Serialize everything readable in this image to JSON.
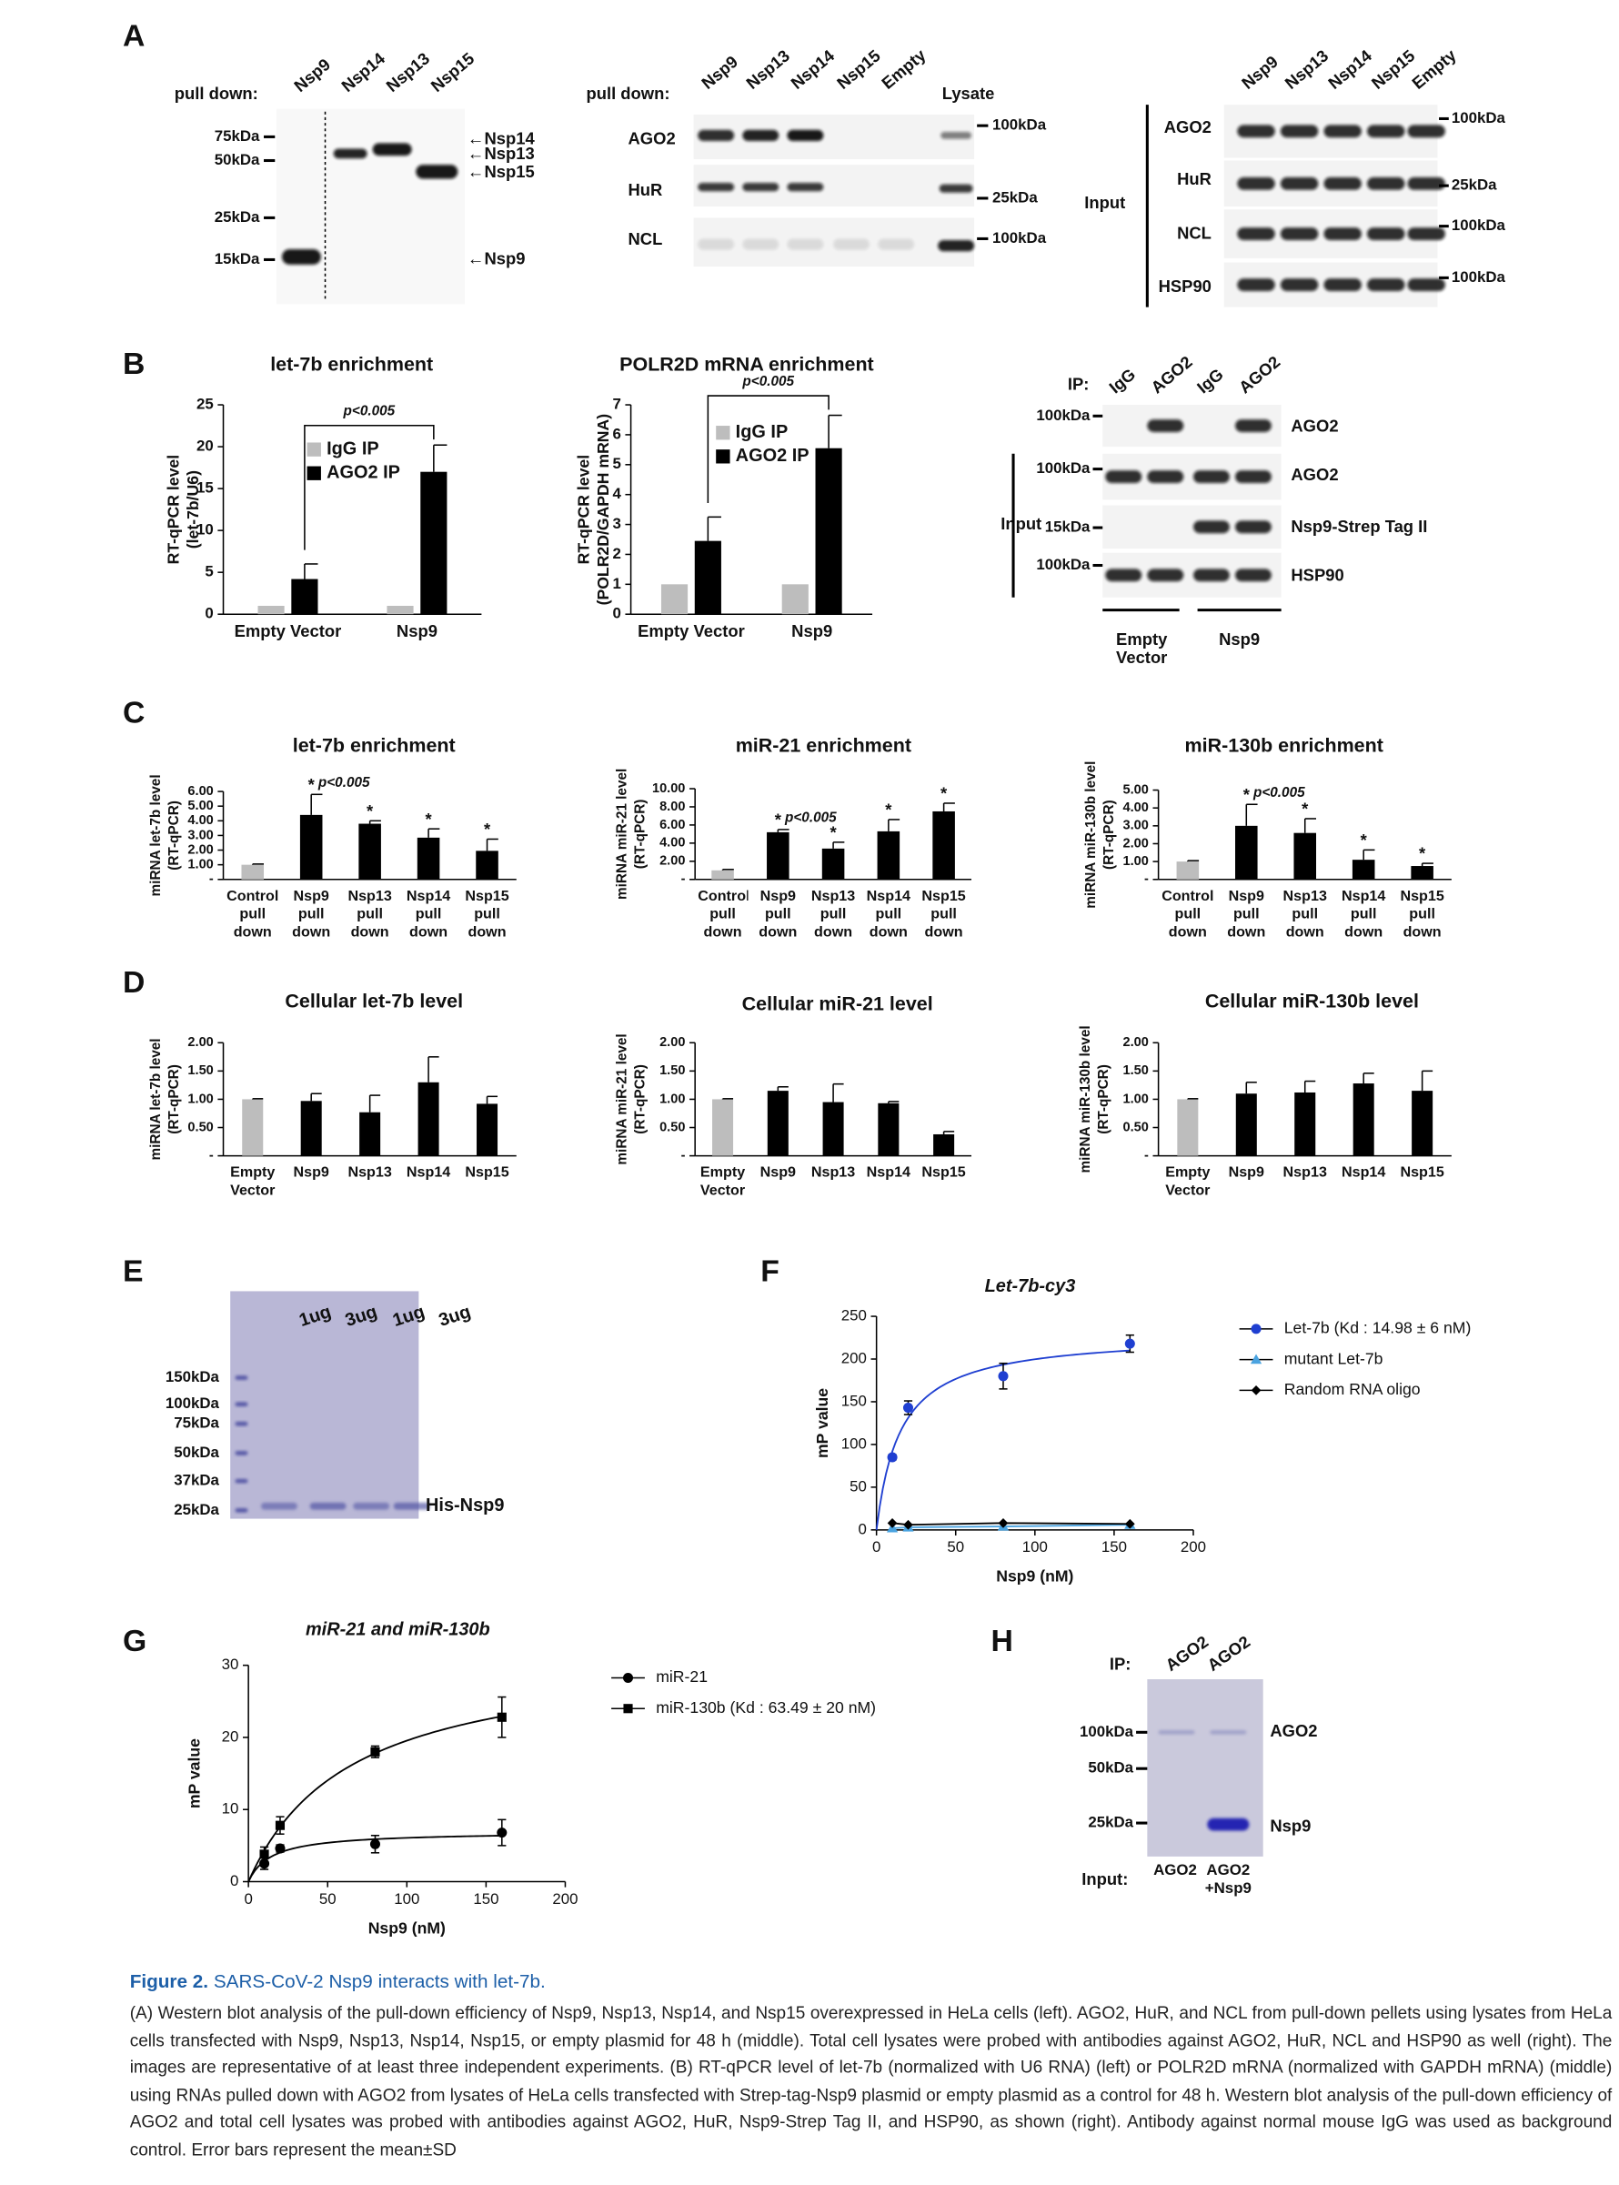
{
  "panel_labels": [
    "A",
    "B",
    "C",
    "D",
    "E",
    "F",
    "G",
    "H"
  ],
  "blots": {
    "A_left": {
      "pull_down": "pull down:",
      "lanes": [
        "Nsp9",
        "Nsp14",
        "Nsp13",
        "Nsp15"
      ],
      "markers": [
        "75kDa",
        "50kDa",
        "25kDa",
        "15kDa"
      ],
      "bands": [
        "←Nsp14",
        "←Nsp13",
        "←Nsp15",
        "←Nsp9"
      ]
    },
    "A_middle": {
      "pull_down": "pull down:",
      "lanes": [
        "Nsp9",
        "Nsp13",
        "Nsp14",
        "Nsp15",
        "Empty"
      ],
      "lysate": "Lysate",
      "rows": [
        "AGO2",
        "HuR",
        "NCL"
      ],
      "markers": [
        "100kDa",
        "25kDa",
        "100kDa"
      ]
    },
    "A_right": {
      "lanes": [
        "Nsp9",
        "Nsp13",
        "Nsp14",
        "Nsp15",
        "Empty"
      ],
      "rows": [
        "AGO2",
        "HuR",
        "NCL",
        "HSP90"
      ],
      "markers": [
        "100kDa",
        "25kDa",
        "100kDa",
        "100kDa"
      ],
      "group": "Input"
    },
    "B_right": {
      "ip": "IP:",
      "lanes": [
        "IgG",
        "AGO2",
        "IgG",
        "AGO2"
      ],
      "markers": [
        "100kDa",
        "100kDa",
        "15kDa",
        "100kDa"
      ],
      "rows": [
        "AGO2",
        "AGO2",
        "Nsp9-Strep Tag II",
        "HSP90"
      ],
      "group": "Input",
      "conditions": [
        "Empty Vector",
        "Nsp9"
      ]
    },
    "E": {
      "lanes": [
        "1ug",
        "3ug",
        "1ug",
        "3ug"
      ],
      "markers": [
        "150kDa",
        "100kDa",
        "75kDa",
        "50kDa",
        "37kDa",
        "25kDa"
      ],
      "band": "His-Nsp9"
    },
    "H": {
      "ip": "IP:",
      "lanes": [
        "AGO2",
        "AGO2"
      ],
      "markers": [
        "100kDa",
        "50kDa",
        "25kDa"
      ],
      "rows": [
        "AGO2",
        "Nsp9"
      ],
      "input": "Input:",
      "inputs": [
        "AGO2",
        "AGO2 +Nsp9"
      ]
    }
  },
  "chart_data": [
    {
      "type": "bar",
      "title": "let-7b enrichment",
      "ylabel": [
        "RT-qPCR level",
        "(let-7b/U6)"
      ],
      "categories": [
        "Empty Vector",
        "Nsp9"
      ],
      "series": [
        {
          "name": "IgG IP",
          "color": "#bdbdbd",
          "values": [
            1,
            1
          ]
        },
        {
          "name": "AGO2 IP",
          "color": "#000000",
          "values": [
            4.2,
            17
          ],
          "errors": [
            1.8,
            3.2
          ]
        }
      ],
      "ylim": [
        0,
        25
      ],
      "yticks": [
        0,
        5,
        10,
        15,
        20,
        25
      ],
      "p_label": "p<0.005",
      "legend": true
    },
    {
      "type": "bar",
      "title": "POLR2D mRNA enrichment",
      "ylabel": [
        "RT-qPCR level",
        "(POLR2D/GAPDH mRNA)"
      ],
      "categories": [
        "Empty Vector",
        "Nsp9"
      ],
      "series": [
        {
          "name": "IgG IP",
          "color": "#bdbdbd",
          "values": [
            1,
            1
          ]
        },
        {
          "name": "AGO2 IP",
          "color": "#000000",
          "values": [
            2.45,
            5.55
          ],
          "errors": [
            0.8,
            1.1
          ]
        }
      ],
      "ylim": [
        0,
        7
      ],
      "yticks": [
        0,
        1,
        2,
        3,
        4,
        5,
        6,
        7
      ],
      "p_label": "p<0.005",
      "legend": true
    },
    {
      "type": "bar",
      "title": "let-7b enrichment",
      "ylabel": [
        "miRNA let-7b level",
        "(RT-qPCR)"
      ],
      "categories": [
        "Control pull down",
        "Nsp9 pull down",
        "Nsp13 pull down",
        "Nsp14 pull down",
        "Nsp15 pull down"
      ],
      "series": [
        {
          "colors": [
            "#bdbdbd",
            "#000000",
            "#000000",
            "#000000",
            "#000000"
          ],
          "values": [
            1,
            4.4,
            3.8,
            2.85,
            1.95
          ],
          "errors": [
            0.05,
            1.4,
            0.2,
            0.6,
            0.8
          ]
        }
      ],
      "ylim": [
        0,
        6
      ],
      "yticks": [
        {
          "value": 0,
          "label": "-"
        },
        {
          "value": 1,
          "label": "1.00"
        },
        {
          "value": 2,
          "label": "2.00"
        },
        {
          "value": 3,
          "label": "3.00"
        },
        {
          "value": 4,
          "label": "4.00"
        },
        {
          "value": 5,
          "label": "5.00"
        },
        {
          "value": 6,
          "label": "6.00"
        }
      ],
      "significance": [
        null,
        "*",
        "*",
        "*",
        "*"
      ],
      "p_label": "p<0.005"
    },
    {
      "type": "bar",
      "title": "miR-21 enrichment",
      "ylabel": [
        "miRNA miR-21 level",
        "(RT-qPCR)"
      ],
      "categories": [
        "Control pull down",
        "Nsp9 pull down",
        "Nsp13 pull down",
        "Nsp14 pull down",
        "Nsp15 pull down"
      ],
      "series": [
        {
          "colors": [
            "#bdbdbd",
            "#000000",
            "#000000",
            "#000000",
            "#000000"
          ],
          "values": [
            1,
            5.2,
            3.4,
            5.3,
            7.5
          ],
          "errors": [
            0.1,
            0.3,
            0.7,
            1.3,
            0.9
          ]
        }
      ],
      "ylim": [
        0,
        10
      ],
      "yticks": [
        {
          "value": 0,
          "label": "-"
        },
        {
          "value": 2,
          "label": "2.00"
        },
        {
          "value": 4,
          "label": "4.00"
        },
        {
          "value": 6,
          "label": "6.00"
        },
        {
          "value": 8,
          "label": "8.00"
        },
        {
          "value": 10,
          "label": "10.00"
        }
      ],
      "significance": [
        null,
        "*",
        "*",
        "*",
        "*"
      ],
      "p_label": "p<0.005"
    },
    {
      "type": "bar",
      "title": "miR-130b enrichment",
      "ylabel": [
        "miRNA miR-130b level",
        "(RT-qPCR)"
      ],
      "categories": [
        "Control pull down",
        "Nsp9 pull down",
        "Nsp13 pull down",
        "Nsp14 pull down",
        "Nsp15 pull down"
      ],
      "series": [
        {
          "colors": [
            "#bdbdbd",
            "#000000",
            "#000000",
            "#000000",
            "#000000"
          ],
          "values": [
            1,
            3,
            2.6,
            1.1,
            0.75
          ],
          "errors": [
            0.05,
            1.2,
            0.8,
            0.55,
            0.15
          ]
        }
      ],
      "ylim": [
        0,
        5
      ],
      "yticks": [
        {
          "value": 0,
          "label": "-"
        },
        {
          "value": 1,
          "label": "1.00"
        },
        {
          "value": 2,
          "label": "2.00"
        },
        {
          "value": 3,
          "label": "3.00"
        },
        {
          "value": 4,
          "label": "4.00"
        },
        {
          "value": 5,
          "label": "5.00"
        }
      ],
      "significance": [
        null,
        "*",
        "*",
        "*",
        "*"
      ],
      "p_label": "p<0.005"
    },
    {
      "type": "bar",
      "title": "Cellular let-7b level",
      "ylabel": [
        "miRNA let-7b level",
        "(RT-qPCR)"
      ],
      "categories": [
        "Empty Vector",
        "Nsp9",
        "Nsp13",
        "Nsp14",
        "Nsp15"
      ],
      "series": [
        {
          "colors": [
            "#bdbdbd",
            "#000000",
            "#000000",
            "#000000",
            "#000000"
          ],
          "values": [
            1,
            0.97,
            0.77,
            1.3,
            0.92
          ],
          "errors": [
            0.01,
            0.13,
            0.3,
            0.45,
            0.13
          ]
        }
      ],
      "ylim": [
        0,
        2
      ],
      "yticks": [
        {
          "value": 0,
          "label": "-"
        },
        {
          "value": 0.5,
          "label": "0.50"
        },
        {
          "value": 1,
          "label": "1.00"
        },
        {
          "value": 1.5,
          "label": "1.50"
        },
        {
          "value": 2,
          "label": "2.00"
        }
      ]
    },
    {
      "type": "bar",
      "title": "Cellular miR-21 level",
      "ylabel": [
        "miRNA miR-21 level",
        "(RT-qPCR)"
      ],
      "categories": [
        "Empty Vector",
        "Nsp9",
        "Nsp13",
        "Nsp14",
        "Nsp15"
      ],
      "series": [
        {
          "colors": [
            "#bdbdbd",
            "#000000",
            "#000000",
            "#000000",
            "#000000"
          ],
          "values": [
            1,
            1.15,
            0.95,
            0.93,
            0.38
          ],
          "errors": [
            0.01,
            0.07,
            0.32,
            0.03,
            0.05
          ]
        }
      ],
      "ylim": [
        0,
        2
      ],
      "yticks": [
        {
          "value": 0,
          "label": "-"
        },
        {
          "value": 0.5,
          "label": "0.50"
        },
        {
          "value": 1,
          "label": "1.00"
        },
        {
          "value": 1.5,
          "label": "1.50"
        },
        {
          "value": 2,
          "label": "2.00"
        }
      ]
    },
    {
      "type": "bar",
      "title": "Cellular miR-130b level",
      "ylabel": [
        "miRNA miR-130b level",
        "(RT-qPCR)"
      ],
      "categories": [
        "Empty Vector",
        "Nsp9",
        "Nsp13",
        "Nsp14",
        "Nsp15"
      ],
      "series": [
        {
          "colors": [
            "#bdbdbd",
            "#000000",
            "#000000",
            "#000000",
            "#000000"
          ],
          "values": [
            1,
            1.1,
            1.12,
            1.28,
            1.15
          ],
          "errors": [
            0.01,
            0.2,
            0.2,
            0.18,
            0.35
          ]
        }
      ],
      "ylim": [
        0,
        2
      ],
      "yticks": [
        {
          "value": 0,
          "label": "-"
        },
        {
          "value": 0.5,
          "label": "0.50"
        },
        {
          "value": 1,
          "label": "1.00"
        },
        {
          "value": 1.5,
          "label": "1.50"
        },
        {
          "value": 2,
          "label": "2.00"
        }
      ]
    },
    {
      "type": "scatter",
      "title": "Let-7b-cy3",
      "xlabel": "Nsp9 (nM)",
      "ylabel": "mP value",
      "x": [
        10,
        20,
        80,
        160
      ],
      "series": [
        {
          "name": "Let-7b (Kd : 14.98 ± 6 nM)",
          "color": "#1f3fd1",
          "marker": "circle",
          "fit": true,
          "values": [
            85,
            143,
            180,
            218
          ],
          "errors": [
            3,
            8,
            15,
            10
          ]
        },
        {
          "name": "mutant Let-7b",
          "color": "#4aa3e0",
          "marker": "triangle",
          "values": [
            2,
            3,
            4,
            6
          ]
        },
        {
          "name": "Random RNA oligo",
          "color": "#000000",
          "marker": "diamond",
          "values": [
            8,
            6,
            8,
            7
          ]
        }
      ],
      "xlim": [
        0,
        200
      ],
      "xticks": [
        0,
        50,
        100,
        150,
        200
      ],
      "ylim": [
        0,
        250
      ],
      "yticks": [
        0,
        50,
        100,
        150,
        200,
        250
      ],
      "legend": "right"
    },
    {
      "type": "scatter",
      "title": "miR-21 and miR-130b",
      "xlabel": "Nsp9 (nM)",
      "ylabel": "mP value",
      "x": [
        10,
        20,
        80,
        160
      ],
      "series": [
        {
          "name": "miR-21",
          "color": "#000000",
          "marker": "circle",
          "fit": true,
          "values": [
            2.5,
            4.6,
            5.2,
            6.8
          ],
          "errors": [
            0.8,
            0.5,
            1.2,
            1.8
          ]
        },
        {
          "name": "miR-130b (Kd : 63.49 ± 20 nM)",
          "color": "#000000",
          "marker": "square",
          "fit": true,
          "values": [
            3.8,
            7.8,
            18,
            22.8
          ],
          "errors": [
            1,
            1.2,
            0.8,
            2.8
          ]
        }
      ],
      "xlim": [
        0,
        200
      ],
      "xticks": [
        0,
        50,
        100,
        150,
        200
      ],
      "ylim": [
        0,
        30
      ],
      "yticks": [
        0,
        10,
        20,
        30
      ],
      "legend": "right"
    }
  ],
  "caption": {
    "label": "Figure 2.",
    "heading": "SARS-CoV-2 Nsp9 interacts with let-7b.",
    "text": "(A) Western blot analysis of the pull-down efficiency of Nsp9, Nsp13, Nsp14, and Nsp15 overexpressed in HeLa cells (left). AGO2, HuR, and NCL from pull-down pellets using lysates from HeLa cells transfected with Nsp9, Nsp13, Nsp14, Nsp15, or empty plasmid for 48 h (middle). Total cell lysates were probed with antibodies against AGO2, HuR, NCL and HSP90 as well (right). The images are representative of at least three independent experiments. (B) RT-qPCR level of let-7b (normalized with U6 RNA) (left) or POLR2D mRNA (normalized with GAPDH mRNA) (middle) using RNAs pulled down with AGO2 from lysates of HeLa cells transfected with Strep-tag-Nsp9 plasmid or empty plasmid as a control for 48 h. Western blot analysis of the pull-down efficiency of AGO2 and total cell lysates was probed with antibodies against AGO2, HuR, Nsp9-Strep Tag II, and HSP90, as shown (right). Antibody against normal mouse IgG was used as background control. Error bars represent the mean±SD"
  }
}
